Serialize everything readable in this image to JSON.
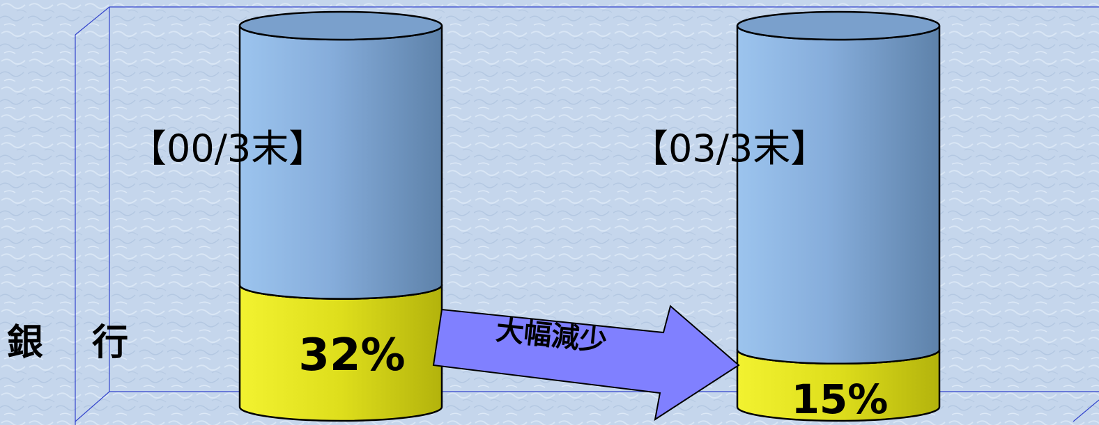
{
  "chart_data": {
    "type": "bar",
    "stacked": true,
    "style": "3d-cylinder",
    "categories": [
      "【00/3末】",
      "【03/3末】"
    ],
    "series": [
      {
        "values": [
          32,
          15
        ],
        "color": "#e2e21f"
      },
      {
        "values": [
          68,
          85
        ],
        "color": "#8db4de"
      }
    ],
    "data_labels": [
      "32%",
      "15%"
    ],
    "row_label": "銀　 行",
    "annotation": "大幅減少",
    "ylim": [
      0,
      100
    ],
    "grid": false
  },
  "colors": {
    "background": "#c5d6ec",
    "frame": "#3344cc",
    "arrow": "#8080ff"
  }
}
